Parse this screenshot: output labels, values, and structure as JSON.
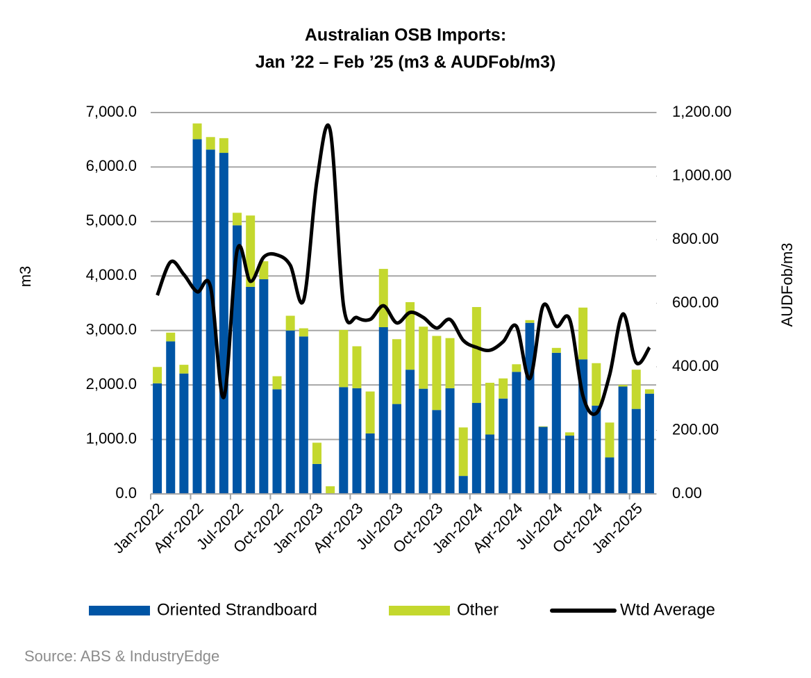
{
  "chart_data": {
    "type": "bar",
    "title": [
      "Australian OSB Imports:",
      "Jan ’22 – Feb ’25 (m3 & AUDFob/m3)"
    ],
    "ylabel": "m3",
    "y2label": "AUDFob/m3",
    "source": "Source: ABS & IndustryEdge",
    "categories": [
      "Jan-2022",
      null,
      null,
      "Apr-2022",
      null,
      null,
      "Jul-2022",
      null,
      null,
      "Oct-2022",
      null,
      null,
      "Jan-2023",
      null,
      null,
      "Apr-2023",
      null,
      null,
      "Jul-2023",
      null,
      null,
      "Oct-2023",
      null,
      null,
      "Jan-2024",
      null,
      null,
      "Apr-2024",
      null,
      null,
      "Jul-2024",
      null,
      null,
      "Oct-2024",
      null,
      null,
      "Jan-2025",
      null
    ],
    "stacked": true,
    "series": [
      {
        "name": "Oriented Strandboard",
        "color": "#0055a5",
        "values": [
          2030,
          2800,
          2210,
          6510,
          6320,
          6260,
          4930,
          3800,
          3940,
          1920,
          3000,
          2890,
          550,
          0,
          1960,
          1940,
          1110,
          3060,
          1650,
          2280,
          1930,
          1540,
          1940,
          330,
          1670,
          1090,
          1750,
          2240,
          3140,
          1230,
          2590,
          1070,
          2470,
          1620,
          670,
          1970,
          1560,
          1840
        ]
      },
      {
        "name": "Other",
        "color": "#c4d82e",
        "values": [
          300,
          160,
          160,
          290,
          230,
          270,
          230,
          1310,
          330,
          240,
          270,
          150,
          390,
          140,
          1050,
          770,
          770,
          1070,
          1190,
          1240,
          1140,
          1360,
          920,
          890,
          1760,
          950,
          370,
          140,
          50,
          10,
          90,
          60,
          950,
          780,
          640,
          30,
          720,
          80
        ]
      },
      {
        "name": "Wtd Average",
        "color": "#000000",
        "type": "line",
        "axis": "y2",
        "values": [
          625,
          730,
          690,
          636,
          651,
          304,
          767,
          669,
          745,
          752,
          719,
          610,
          986,
          1143,
          592,
          555,
          549,
          592,
          538,
          571,
          555,
          522,
          549,
          483,
          461,
          452,
          479,
          527,
          363,
          592,
          527,
          549,
          308,
          254,
          374,
          566,
          413,
          461
        ]
      }
    ],
    "ylim": [
      0,
      7000
    ],
    "yticks": [
      {
        "value": 0,
        "label": "0.0"
      },
      {
        "value": 1000,
        "label": "1,000.0"
      },
      {
        "value": 2000,
        "label": "2,000.0"
      },
      {
        "value": 3000,
        "label": "3,000.0"
      },
      {
        "value": 4000,
        "label": "4,000.0"
      },
      {
        "value": 5000,
        "label": "5,000.0"
      },
      {
        "value": 6000,
        "label": "6,000.0"
      },
      {
        "value": 7000,
        "label": "7,000.0"
      }
    ],
    "y2lim": [
      0,
      1200
    ],
    "y2ticks": [
      {
        "value": 0,
        "label": "0.00"
      },
      {
        "value": 200,
        "label": "200.00"
      },
      {
        "value": 400,
        "label": "400.00"
      },
      {
        "value": 600,
        "label": "600.00"
      },
      {
        "value": 800,
        "label": "800.00"
      },
      {
        "value": 1000,
        "label": "1,000.00"
      },
      {
        "value": 1200,
        "label": "1,200.00"
      }
    ],
    "grid": true,
    "legend": "bottom"
  }
}
